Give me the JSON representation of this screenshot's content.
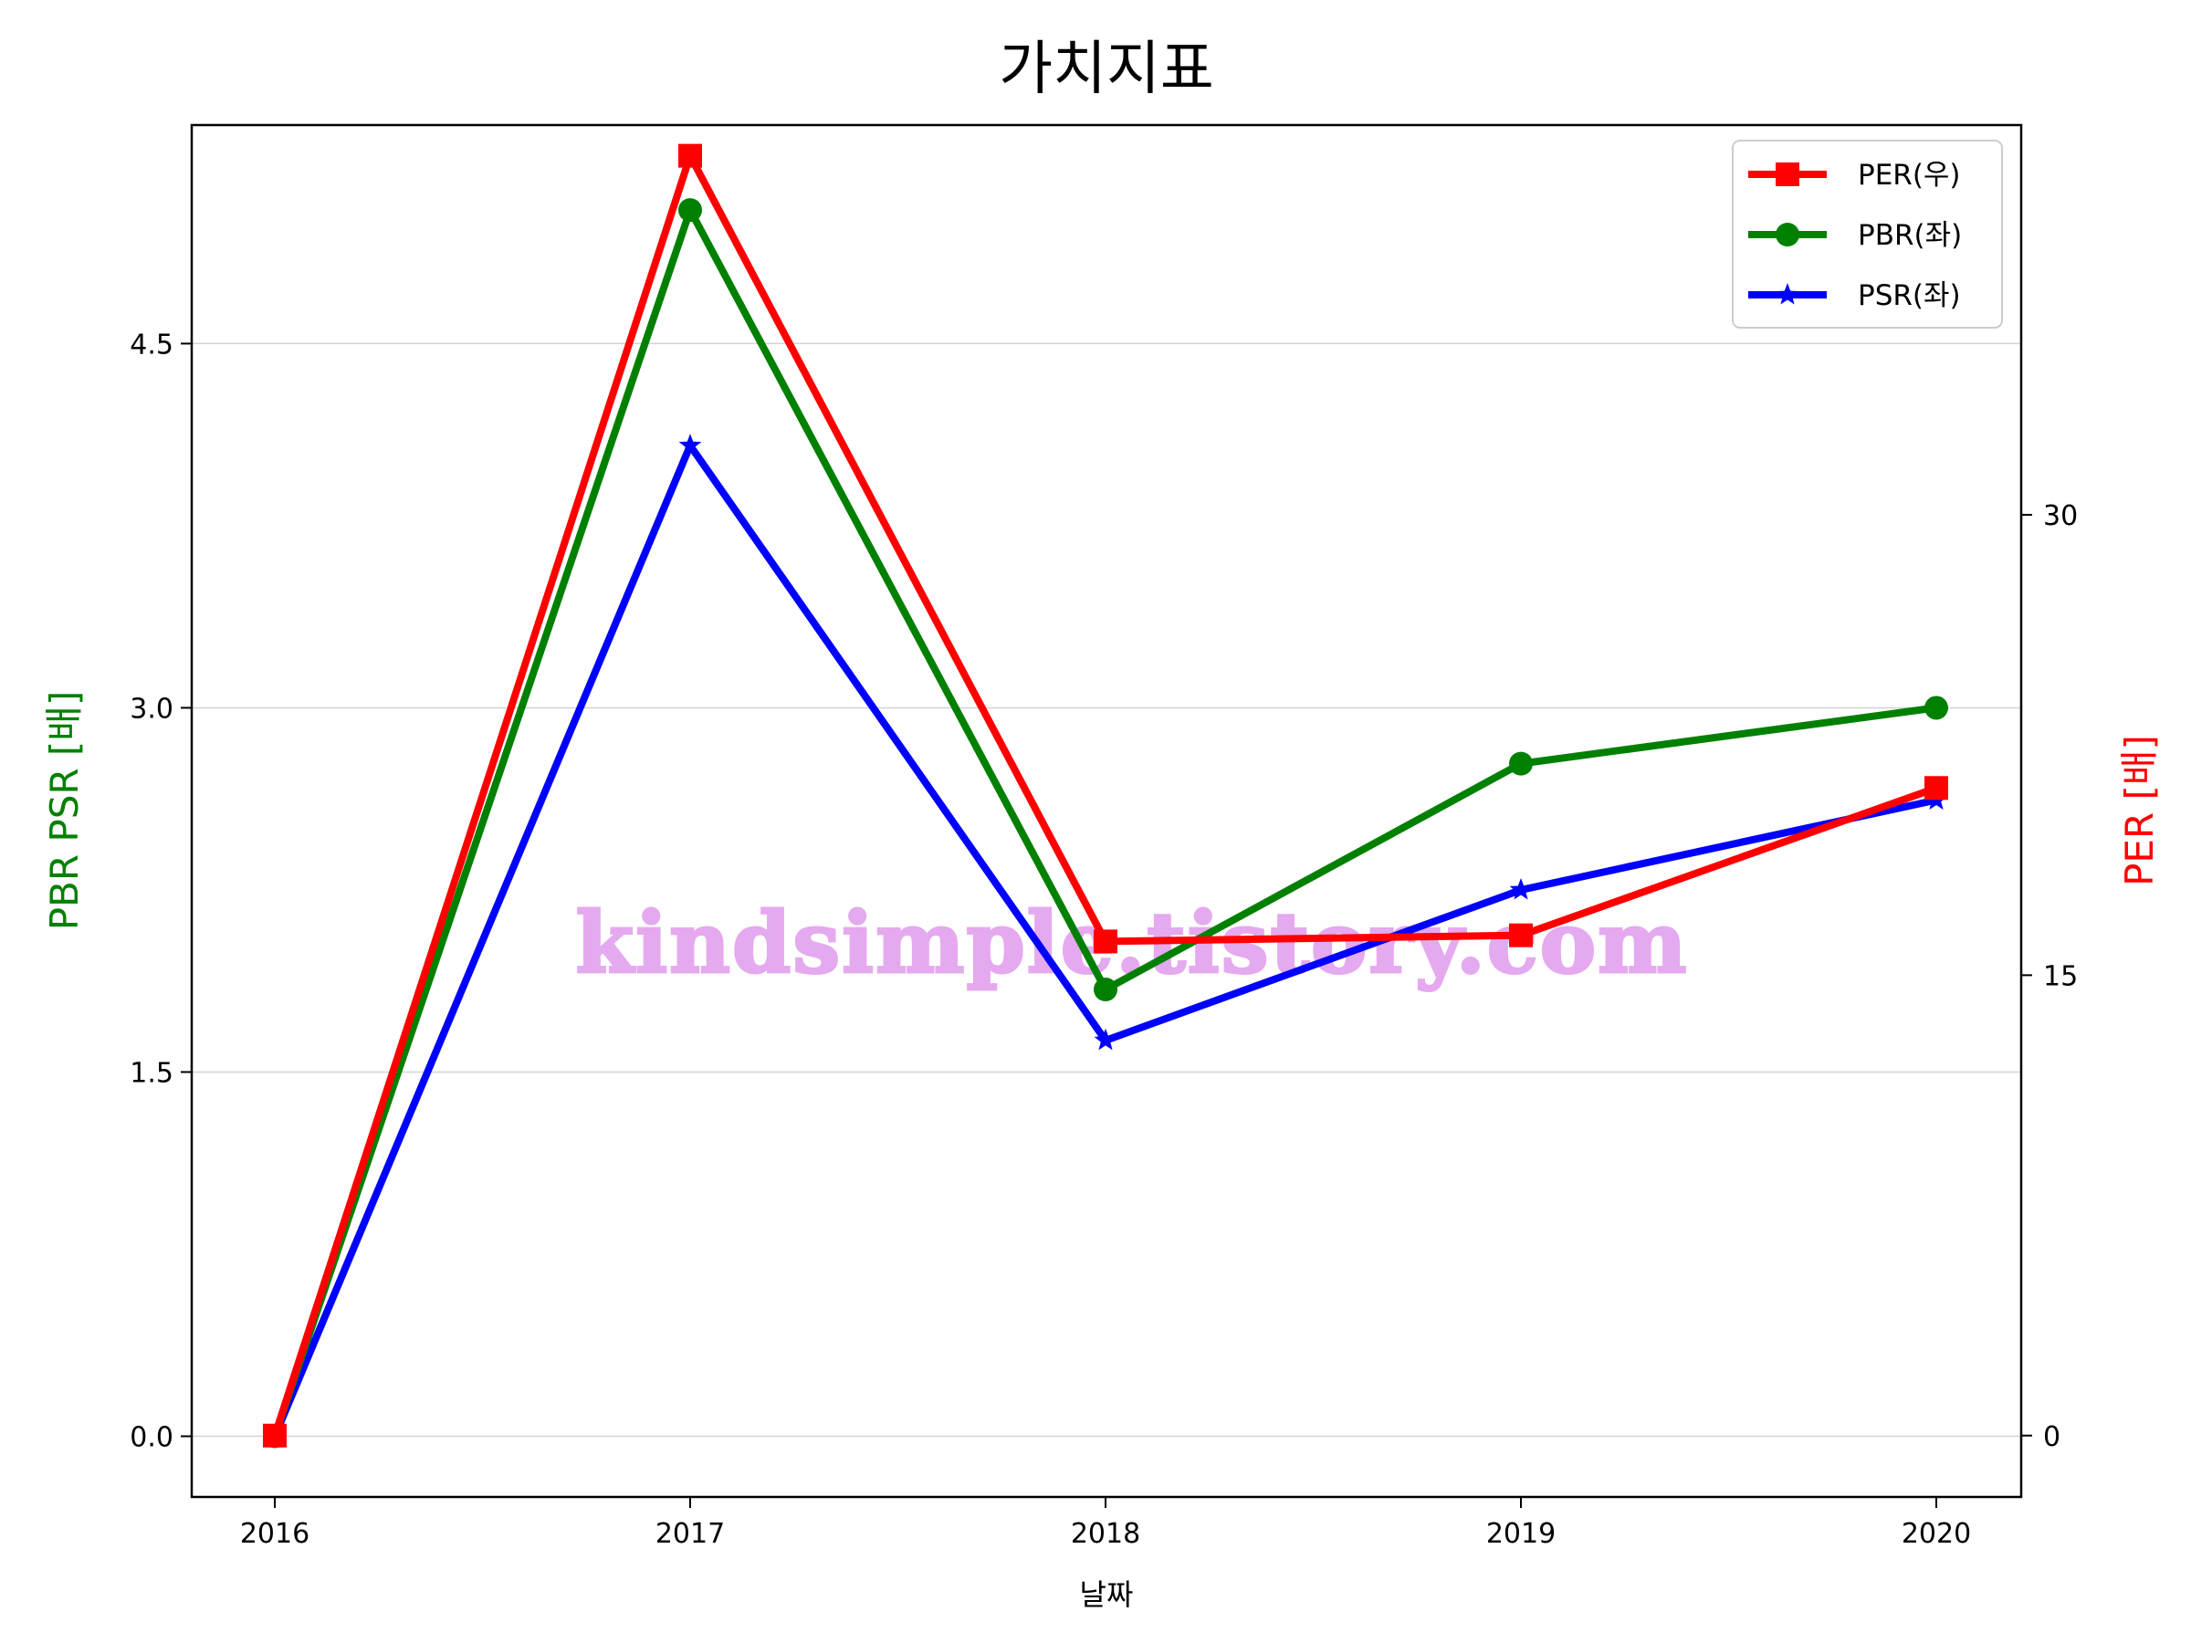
{
  "chart_data": {
    "type": "line",
    "title": "가치지표",
    "xlabel": "날짜",
    "ylabel_left": "PBR PSR [배]",
    "ylabel_right": "PER [배]",
    "categories": [
      "2016",
      "2017",
      "2018",
      "2019",
      "2020"
    ],
    "left_axis": {
      "ylim": [
        -0.25,
        5.4
      ],
      "ticks": [
        0.0,
        1.5,
        3.0,
        4.5
      ],
      "tick_labels": [
        "0.0",
        "1.5",
        "3.0",
        "4.5"
      ],
      "grid": true
    },
    "right_axis": {
      "ylim": [
        -2,
        42.7
      ],
      "ticks": [
        0,
        15,
        30
      ],
      "tick_labels": [
        "0",
        "15",
        "30"
      ]
    },
    "series": [
      {
        "name": "PER(우)",
        "axis": "right",
        "color": "#ff0000",
        "marker": "square",
        "values": [
          0,
          41.7,
          16.1,
          16.3,
          21.1
        ]
      },
      {
        "name": "PBR(좌)",
        "axis": "left",
        "color": "#008000",
        "marker": "circle",
        "values": [
          0,
          5.05,
          1.84,
          2.77,
          3.0
        ]
      },
      {
        "name": "PSR(좌)",
        "axis": "left",
        "color": "#0000ff",
        "marker": "star",
        "values": [
          0,
          4.08,
          1.63,
          2.25,
          2.62
        ]
      }
    ],
    "legend_position": "top-right",
    "watermark": "kindsimple.tistory.com",
    "colors": {
      "left_label": "#008000",
      "right_label": "#ff0000",
      "watermark": "#e5a9ef",
      "grid": "#d3d3d3"
    }
  }
}
